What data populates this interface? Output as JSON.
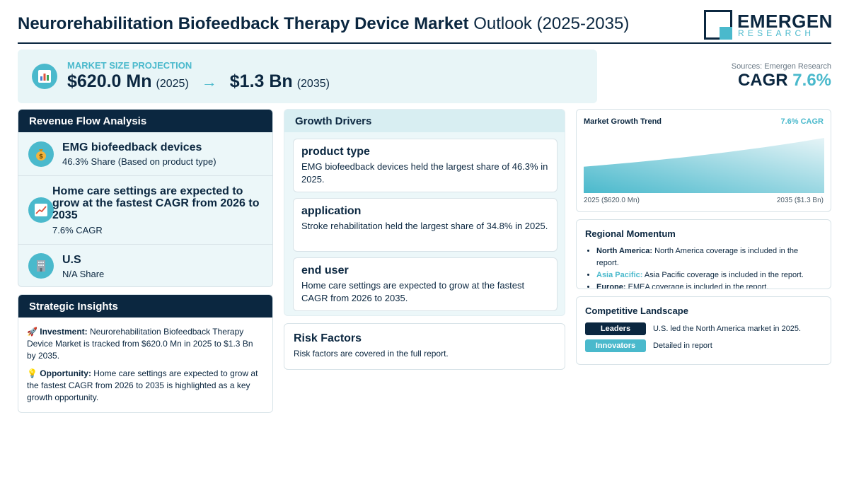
{
  "header": {
    "title_bold": "Neurorehabilitation Biofeedback Therapy Device Market",
    "title_light": "Outlook (2025-2035)",
    "logo_name": "EMERGEN",
    "logo_sub": "RESEARCH"
  },
  "projection": {
    "icon": "bar-chart-icon",
    "label": "MARKET SIZE PROJECTION",
    "start_value": "$620.0 Mn",
    "start_year": "(2025)",
    "arrow": "→",
    "end_value": "$1.3 Bn",
    "end_year": "(2035)"
  },
  "summary": {
    "sources": "Sources: Emergen Research",
    "cagr_label": "CAGR",
    "cagr_value": "7.6%"
  },
  "revenue_flow": {
    "heading": "Revenue Flow Analysis",
    "items": [
      {
        "icon": "money-bag-icon",
        "title": "EMG biofeedback devices",
        "subtitle": "46.3% Share (Based on product type)"
      },
      {
        "icon": "trending-up-icon",
        "title": "Home care settings are expected to grow at the fastest CAGR from 2026 to 2035",
        "subtitle": "7.6% CAGR"
      },
      {
        "icon": "office-building-icon",
        "title": "U.S",
        "subtitle": "N/A Share"
      }
    ]
  },
  "strategic_insights": {
    "heading": "Strategic Insights",
    "items": [
      {
        "icon": "rocket-icon",
        "label": "Investment:",
        "text": "Neurorehabilitation Biofeedback Therapy Device Market is tracked from $620.0 Mn in 2025 to $1.3 Bn by 2035."
      },
      {
        "icon": "light-bulb-icon",
        "label": "Opportunity:",
        "text": "Home care settings are expected to grow at the fastest CAGR from 2026 to 2035 is highlighted as a key growth opportunity."
      }
    ]
  },
  "growth_drivers": {
    "heading": "Growth Drivers",
    "cards": [
      {
        "title": "product type",
        "text": "EMG biofeedback devices held the largest share of 46.3% in 2025."
      },
      {
        "title": "application",
        "text": "Stroke rehabilitation held the largest share of 34.8% in 2025."
      },
      {
        "title": "end user",
        "text": "Home care settings are expected to grow at the fastest CAGR from 2026 to 2035."
      }
    ]
  },
  "risk_factors": {
    "heading": "Risk Factors",
    "text": "Risk factors are covered in the full report."
  },
  "trend": {
    "title": "Market Growth Trend",
    "cagr": "7.6% CAGR",
    "start_label": "2025 ($620.0 Mn)",
    "end_label": "2035 ($1.3 Bn)"
  },
  "chart_data": {
    "type": "area",
    "x": [
      2025,
      2035
    ],
    "values": [
      620.0,
      1300.0
    ],
    "unit": "$ Mn",
    "title": "Market Growth Trend",
    "annotations": [
      "7.6% CAGR",
      "2025 ($620.0 Mn)",
      "2035 ($1.3 Bn)"
    ],
    "grid": false,
    "colors": {
      "fill_top": "#e6f4f7",
      "fill_bottom": "#4ab9cc"
    }
  },
  "regional": {
    "heading": "Regional Momentum",
    "items": [
      {
        "region": "North America:",
        "text": "North America coverage is included in the report."
      },
      {
        "region": "Asia Pacific:",
        "text": "Asia Pacific coverage is included in the report."
      },
      {
        "region": "Europe:",
        "text": "EMEA coverage is included in the report."
      }
    ]
  },
  "competitive": {
    "heading": "Competitive Landscape",
    "rows": [
      {
        "tag": "Leaders",
        "text": "U.S. led the North America market in 2025."
      },
      {
        "tag": "Innovators",
        "text": "Detailed in report"
      }
    ]
  },
  "colors": {
    "navy": "#0b2740",
    "teal": "#4ab9cc",
    "light_panel": "#ecf7f9"
  }
}
